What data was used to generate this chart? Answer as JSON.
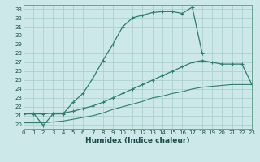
{
  "xlabel": "Humidex (Indice chaleur)",
  "bg_color": "#cce8e8",
  "grid_color": "#a8cccc",
  "line_color": "#2e7d6e",
  "xlim": [
    0,
    23
  ],
  "ylim": [
    19.5,
    33.5
  ],
  "yticks": [
    20,
    21,
    22,
    23,
    24,
    25,
    26,
    27,
    28,
    29,
    30,
    31,
    32,
    33
  ],
  "xticks": [
    0,
    1,
    2,
    3,
    4,
    5,
    6,
    7,
    8,
    9,
    10,
    11,
    12,
    13,
    14,
    15,
    16,
    17,
    18,
    19,
    20,
    21,
    22,
    23
  ],
  "line1_x": [
    0,
    1,
    2,
    3,
    4,
    5,
    6,
    7,
    8,
    9,
    10,
    11,
    12,
    13,
    14,
    15,
    16,
    17,
    18
  ],
  "line1_y": [
    21.2,
    21.3,
    19.9,
    21.2,
    21.2,
    22.5,
    23.5,
    25.2,
    27.2,
    29.0,
    31.0,
    32.0,
    32.3,
    32.6,
    32.7,
    32.7,
    32.5,
    33.2,
    28.0
  ],
  "line2_x": [
    0,
    1,
    2,
    3,
    4,
    5,
    6,
    7,
    8,
    9,
    10,
    11,
    12,
    13,
    14,
    15,
    16,
    17,
    18,
    19,
    20,
    21,
    22,
    23
  ],
  "line2_y": [
    21.2,
    21.2,
    21.2,
    21.3,
    21.3,
    21.5,
    21.8,
    22.1,
    22.5,
    23.0,
    23.5,
    24.0,
    24.5,
    25.0,
    25.5,
    26.0,
    26.5,
    27.0,
    27.2,
    27.0,
    26.8,
    26.8,
    26.8,
    24.5
  ],
  "line3_x": [
    0,
    1,
    2,
    3,
    4,
    5,
    6,
    7,
    8,
    9,
    10,
    11,
    12,
    13,
    14,
    15,
    16,
    17,
    18,
    19,
    20,
    21,
    22,
    23
  ],
  "line3_y": [
    20.2,
    20.2,
    20.2,
    20.3,
    20.4,
    20.6,
    20.8,
    21.0,
    21.3,
    21.7,
    22.0,
    22.3,
    22.6,
    23.0,
    23.2,
    23.5,
    23.7,
    24.0,
    24.2,
    24.3,
    24.4,
    24.5,
    24.5,
    24.5
  ]
}
